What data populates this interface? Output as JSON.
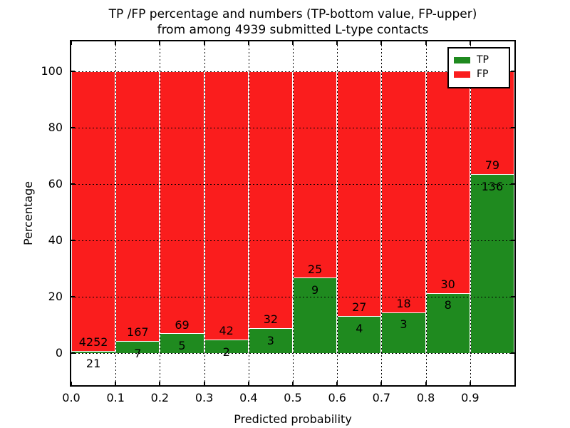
{
  "chart_data": {
    "type": "bar",
    "stacked": true,
    "normalized_to_percent": true,
    "title_line1": "TP /FP percentage and numbers (TP-bottom value, FP-upper)",
    "title_line2": "from among 4939 submitted L-type contacts",
    "xlabel": "Predicted probability",
    "ylabel": "Percentage",
    "bin_width": 0.1,
    "bins": [
      {
        "x_start": 0.0,
        "x_end": 0.1,
        "tp": 21,
        "fp": 4252
      },
      {
        "x_start": 0.1,
        "x_end": 0.2,
        "tp": 7,
        "fp": 167
      },
      {
        "x_start": 0.2,
        "x_end": 0.3,
        "tp": 5,
        "fp": 69
      },
      {
        "x_start": 0.3,
        "x_end": 0.4,
        "tp": 2,
        "fp": 42
      },
      {
        "x_start": 0.4,
        "x_end": 0.5,
        "tp": 3,
        "fp": 32
      },
      {
        "x_start": 0.5,
        "x_end": 0.6,
        "tp": 9,
        "fp": 25
      },
      {
        "x_start": 0.6,
        "x_end": 0.7,
        "tp": 4,
        "fp": 27
      },
      {
        "x_start": 0.7,
        "x_end": 0.8,
        "tp": 3,
        "fp": 18
      },
      {
        "x_start": 0.8,
        "x_end": 0.9,
        "tp": 8,
        "fp": 30
      },
      {
        "x_start": 0.9,
        "x_end": 1.0,
        "tp": 136,
        "fp": 79
      }
    ],
    "series": [
      {
        "name": "TP",
        "color": "#1f8a1f"
      },
      {
        "name": "FP",
        "color": "#fa1d1d"
      }
    ],
    "yticks": [
      "0",
      "20",
      "40",
      "60",
      "80",
      "100"
    ],
    "ytick_values": [
      0,
      20,
      40,
      60,
      80,
      100
    ],
    "xticks": [
      "0.0",
      "0.1",
      "0.2",
      "0.3",
      "0.4",
      "0.5",
      "0.6",
      "0.7",
      "0.8",
      "0.9"
    ],
    "xtick_values": [
      0.0,
      0.1,
      0.2,
      0.3,
      0.4,
      0.5,
      0.6,
      0.7,
      0.8,
      0.9
    ],
    "xlim": [
      0.0,
      1.0
    ],
    "ylim": [
      -11.4,
      110.6
    ],
    "grid": true,
    "legend": {
      "position": "upper right",
      "entries": [
        "TP",
        "FP"
      ]
    },
    "bar_edge_color": "#ffffff"
  }
}
